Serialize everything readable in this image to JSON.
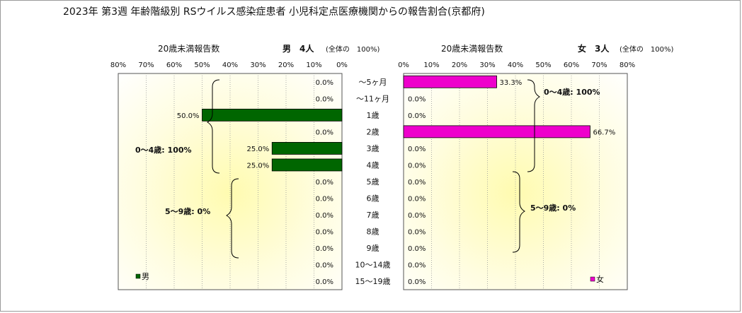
{
  "chart_data": {
    "type": "bar",
    "title": "2023年 第3週 年齢階級別 RSウイルス感染症患者 小児科定点医療機関からの報告割合(京都府)",
    "categories": [
      "～5ヶ月",
      "～11ヶ月",
      "1歳",
      "2歳",
      "3歳",
      "4歳",
      "5歳",
      "6歳",
      "7歳",
      "8歳",
      "9歳",
      "10～14歳",
      "15～19歳"
    ],
    "xlim": [
      0,
      80
    ],
    "tick_values": [
      80,
      70,
      60,
      50,
      40,
      30,
      20,
      10,
      0
    ],
    "tick_labels_left": [
      "80%",
      "70%",
      "60%",
      "50%",
      "40%",
      "30%",
      "20%",
      "10%",
      "0%"
    ],
    "tick_labels_right": [
      "0%",
      "10%",
      "20%",
      "30%",
      "40%",
      "50%",
      "60%",
      "70%",
      "80%"
    ],
    "male": {
      "header_label": "20歳未満報告数",
      "count_label": "男　4人",
      "overall_label": "(全体の　100%)",
      "legend": "男",
      "color": "#006600",
      "values": [
        0,
        0,
        50,
        0,
        25,
        25,
        0,
        0,
        0,
        0,
        0,
        0,
        0
      ],
      "value_labels": [
        "0.0%",
        "0.0%",
        "50.0%",
        "0.0%",
        "25.0%",
        "25.0%",
        "0.0%",
        "0.0%",
        "0.0%",
        "0.0%",
        "0.0%",
        "0.0%",
        "0.0%"
      ],
      "group_labels": [
        "0～4歳: 100%",
        "5～9歳: 0%"
      ]
    },
    "female": {
      "header_label": "20歳未満報告数",
      "count_label": "女　3人",
      "overall_label": "(全体の　100%)",
      "legend": "女",
      "color": "#ee00cc",
      "values": [
        33.3,
        0,
        0,
        66.7,
        0,
        0,
        0,
        0,
        0,
        0,
        0,
        0,
        0
      ],
      "value_labels": [
        "33.3%",
        "0.0%",
        "0.0%",
        "66.7%",
        "0.0%",
        "0.0%",
        "0.0%",
        "0.0%",
        "0.0%",
        "0.0%",
        "0.0%",
        "0.0%",
        "0.0%"
      ],
      "group_labels": [
        "0～4歳: 100%",
        "5～9歳: 0%"
      ]
    }
  }
}
